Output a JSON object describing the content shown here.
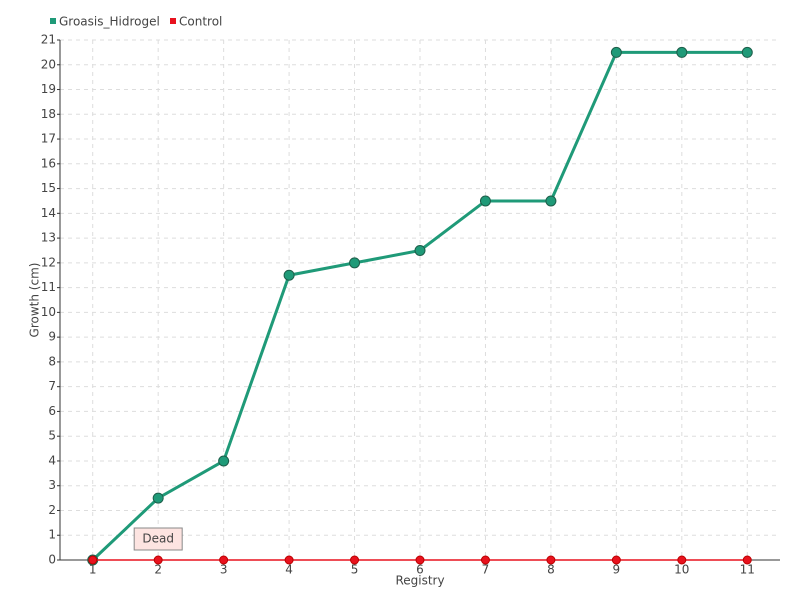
{
  "chart_data": {
    "type": "line",
    "x_label": "Registry",
    "y_label": "Growth (cm)",
    "categories": [
      "1",
      "2",
      "3",
      "4",
      "5",
      "6",
      "7",
      "8",
      "9",
      "10",
      "11"
    ],
    "series": [
      {
        "name": "Groasis_Hidrogel",
        "color": "#1f9a78",
        "values": [
          0,
          2.5,
          4,
          11.5,
          12,
          12.5,
          14.5,
          14.5,
          20.5,
          20.5,
          20.5
        ]
      },
      {
        "name": "Control",
        "color": "#e8121e",
        "values": [
          0,
          0,
          0,
          0,
          0,
          0,
          0,
          0,
          0,
          0,
          0
        ]
      }
    ],
    "annotations": [
      {
        "text": "Dead",
        "x": "2"
      }
    ],
    "ylim": [
      0,
      21
    ],
    "yticks": [
      0,
      1,
      2,
      3,
      4,
      5,
      6,
      7,
      8,
      9,
      10,
      11,
      12,
      13,
      14,
      15,
      16,
      17,
      18,
      19,
      20,
      21
    ],
    "grid": true,
    "legend": "top-left"
  }
}
